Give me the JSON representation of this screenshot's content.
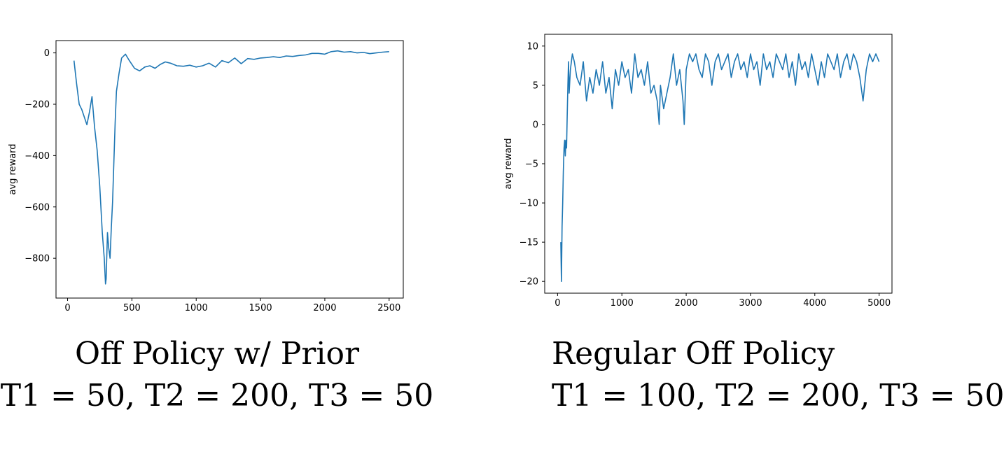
{
  "colors": {
    "series": "#1f77b4",
    "axis": "#000000",
    "background": "#ffffff"
  },
  "captions": {
    "left": {
      "line1": "Off Policy w/ Prior",
      "line2": "T1 = 50, T2 = 200, T3 = 50"
    },
    "right": {
      "line1": "Regular Off Policy",
      "line2": "T1 = 100, T2 = 200, T3 = 50"
    }
  },
  "chart_data": [
    {
      "type": "line",
      "title": "",
      "xlabel": "",
      "ylabel": "avg reward",
      "xlim": [
        -90,
        2610
      ],
      "ylim": [
        -955,
        48
      ],
      "xticks": [
        0,
        500,
        1000,
        1500,
        2000,
        2500
      ],
      "yticks": [
        0,
        -200,
        -400,
        -600,
        -800
      ],
      "ytick_labels": [
        "0",
        "−200",
        "−400",
        "−600",
        "−800"
      ],
      "grid": false,
      "series": [
        {
          "x": [
            50,
            70,
            90,
            110,
            130,
            150,
            170,
            190,
            210,
            230,
            250,
            270,
            285,
            295,
            300,
            310,
            320,
            330,
            340,
            350,
            360,
            370,
            380,
            400,
            420,
            450,
            480,
            520,
            560,
            600,
            640,
            680,
            720,
            760,
            800,
            850,
            900,
            950,
            1000,
            1050,
            1100,
            1150,
            1200,
            1250,
            1300,
            1350,
            1400,
            1450,
            1500,
            1550,
            1600,
            1650,
            1700,
            1750,
            1800,
            1850,
            1900,
            1950,
            2000,
            2050,
            2100,
            2150,
            2200,
            2250,
            2300,
            2350,
            2400,
            2450,
            2500
          ],
          "values": [
            -30,
            -120,
            -200,
            -220,
            -250,
            -280,
            -230,
            -170,
            -290,
            -380,
            -520,
            -700,
            -800,
            -900,
            -880,
            -700,
            -760,
            -800,
            -680,
            -580,
            -420,
            -270,
            -150,
            -80,
            -20,
            -5,
            -30,
            -60,
            -70,
            -55,
            -50,
            -60,
            -45,
            -35,
            -40,
            -50,
            -52,
            -48,
            -55,
            -50,
            -40,
            -55,
            -30,
            -38,
            -20,
            -42,
            -22,
            -25,
            -20,
            -18,
            -15,
            -18,
            -12,
            -14,
            -10,
            -8,
            -2,
            -2,
            -5,
            5,
            8,
            3,
            5,
            0,
            2,
            -3,
            0,
            3,
            5
          ]
        }
      ]
    },
    {
      "type": "line",
      "title": "",
      "xlabel": "",
      "ylabel": "avg reward",
      "xlim": [
        -200,
        5200
      ],
      "ylim": [
        -21.5,
        11.5
      ],
      "xticks": [
        0,
        1000,
        2000,
        3000,
        4000,
        5000
      ],
      "yticks": [
        10,
        5,
        0,
        -5,
        -10,
        -15,
        -20
      ],
      "ytick_labels": [
        "10",
        "5",
        "0",
        "−5",
        "−10",
        "−15",
        "−20"
      ],
      "grid": false,
      "series": [
        {
          "x": [
            50,
            60,
            70,
            80,
            90,
            100,
            110,
            120,
            130,
            140,
            150,
            160,
            170,
            180,
            200,
            230,
            260,
            300,
            350,
            400,
            450,
            500,
            550,
            600,
            650,
            700,
            750,
            800,
            850,
            900,
            950,
            1000,
            1050,
            1100,
            1150,
            1200,
            1250,
            1300,
            1350,
            1400,
            1450,
            1500,
            1550,
            1580,
            1600,
            1650,
            1700,
            1750,
            1800,
            1850,
            1900,
            1950,
            1970,
            2000,
            2050,
            2100,
            2150,
            2200,
            2250,
            2300,
            2350,
            2400,
            2450,
            2500,
            2550,
            2600,
            2650,
            2700,
            2750,
            2800,
            2850,
            2900,
            2950,
            3000,
            3050,
            3100,
            3150,
            3200,
            3250,
            3300,
            3350,
            3400,
            3450,
            3500,
            3550,
            3600,
            3650,
            3700,
            3750,
            3800,
            3850,
            3900,
            3950,
            4000,
            4050,
            4100,
            4150,
            4200,
            4250,
            4300,
            4350,
            4400,
            4450,
            4500,
            4550,
            4600,
            4650,
            4700,
            4750,
            4800,
            4850,
            4900,
            4950,
            5000
          ],
          "values": [
            -15,
            -20,
            -13,
            -10,
            -6,
            -3,
            -2,
            -4,
            -2,
            -3,
            1,
            5,
            8,
            4,
            7,
            9,
            8,
            6,
            5,
            8,
            3,
            6,
            4,
            7,
            5,
            8,
            4,
            6,
            2,
            7,
            5,
            8,
            6,
            7,
            4,
            9,
            6,
            7,
            5,
            8,
            4,
            5,
            3,
            0,
            5,
            2,
            4,
            6,
            9,
            5,
            7,
            3,
            0,
            7,
            9,
            8,
            9,
            7,
            6,
            9,
            8,
            5,
            8,
            9,
            7,
            8,
            9,
            6,
            8,
            9,
            7,
            8,
            6,
            9,
            7,
            8,
            5,
            9,
            7,
            8,
            6,
            9,
            8,
            7,
            9,
            6,
            8,
            5,
            9,
            7,
            8,
            6,
            9,
            7,
            5,
            8,
            6,
            9,
            8,
            7,
            9,
            6,
            8,
            9,
            7,
            9,
            8,
            6,
            3,
            7,
            9,
            8,
            9,
            8
          ]
        }
      ]
    }
  ]
}
